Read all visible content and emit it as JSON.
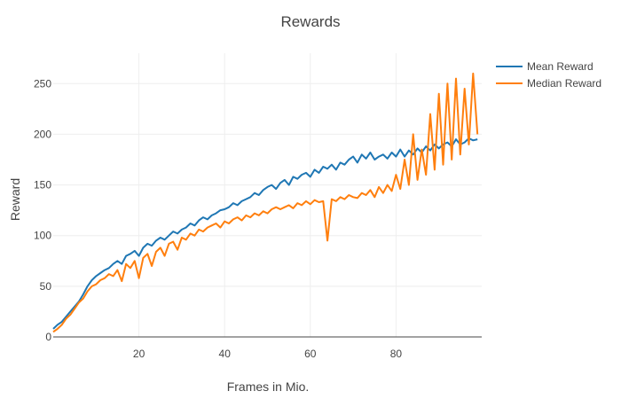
{
  "chart_data": {
    "type": "line",
    "title": "Rewards",
    "xlabel": "Frames in Mio.",
    "ylabel": "Reward",
    "xlim": [
      0,
      100
    ],
    "ylim": [
      0,
      280
    ],
    "xticks": [
      20,
      40,
      60,
      80
    ],
    "yticks": [
      0,
      50,
      100,
      150,
      200,
      250
    ],
    "grid": true,
    "legend_position": "top-right",
    "series": [
      {
        "name": "Mean Reward",
        "color": "#1f77b4",
        "x": [
          0,
          1,
          2,
          3,
          4,
          5,
          6,
          7,
          8,
          9,
          10,
          11,
          12,
          13,
          14,
          15,
          16,
          17,
          18,
          19,
          20,
          21,
          22,
          23,
          24,
          25,
          26,
          27,
          28,
          29,
          30,
          31,
          32,
          33,
          34,
          35,
          36,
          37,
          38,
          39,
          40,
          41,
          42,
          43,
          44,
          45,
          46,
          47,
          48,
          49,
          50,
          51,
          52,
          53,
          54,
          55,
          56,
          57,
          58,
          59,
          60,
          61,
          62,
          63,
          64,
          65,
          66,
          67,
          68,
          69,
          70,
          71,
          72,
          73,
          74,
          75,
          76,
          77,
          78,
          79,
          80,
          81,
          82,
          83,
          84,
          85,
          86,
          87,
          88,
          89,
          90,
          91,
          92,
          93,
          94,
          95,
          96,
          97,
          98,
          99
        ],
        "y": [
          8,
          12,
          15,
          20,
          25,
          30,
          35,
          42,
          50,
          56,
          60,
          63,
          66,
          68,
          72,
          75,
          72,
          80,
          82,
          85,
          80,
          88,
          92,
          90,
          95,
          98,
          96,
          100,
          104,
          102,
          106,
          108,
          112,
          110,
          115,
          118,
          116,
          120,
          122,
          125,
          126,
          128,
          132,
          130,
          134,
          136,
          138,
          142,
          140,
          145,
          148,
          150,
          146,
          152,
          155,
          150,
          158,
          156,
          160,
          162,
          158,
          165,
          162,
          168,
          166,
          170,
          165,
          172,
          170,
          175,
          178,
          172,
          180,
          176,
          182,
          175,
          178,
          180,
          176,
          182,
          178,
          185,
          178,
          184,
          180,
          186,
          182,
          188,
          184,
          190,
          186,
          190,
          192,
          188,
          195,
          190,
          192,
          196,
          194,
          195
        ]
      },
      {
        "name": "Median Reward",
        "color": "#ff7f0e",
        "x": [
          0,
          1,
          2,
          3,
          4,
          5,
          6,
          7,
          8,
          9,
          10,
          11,
          12,
          13,
          14,
          15,
          16,
          17,
          18,
          19,
          20,
          21,
          22,
          23,
          24,
          25,
          26,
          27,
          28,
          29,
          30,
          31,
          32,
          33,
          34,
          35,
          36,
          37,
          38,
          39,
          40,
          41,
          42,
          43,
          44,
          45,
          46,
          47,
          48,
          49,
          50,
          51,
          52,
          53,
          54,
          55,
          56,
          57,
          58,
          59,
          60,
          61,
          62,
          63,
          64,
          65,
          66,
          67,
          68,
          69,
          70,
          71,
          72,
          73,
          74,
          75,
          76,
          77,
          78,
          79,
          80,
          81,
          82,
          83,
          84,
          85,
          86,
          87,
          88,
          89,
          90,
          91,
          92,
          93,
          94,
          95,
          96,
          97,
          98,
          99
        ],
        "y": [
          5,
          8,
          12,
          18,
          22,
          28,
          34,
          38,
          45,
          50,
          52,
          56,
          58,
          62,
          60,
          66,
          55,
          72,
          68,
          75,
          58,
          78,
          82,
          70,
          84,
          88,
          80,
          92,
          94,
          86,
          98,
          96,
          102,
          100,
          106,
          104,
          108,
          110,
          112,
          108,
          114,
          112,
          116,
          118,
          115,
          120,
          118,
          122,
          120,
          124,
          122,
          126,
          128,
          126,
          128,
          130,
          127,
          132,
          130,
          134,
          131,
          135,
          133,
          134,
          95,
          136,
          134,
          138,
          136,
          140,
          138,
          137,
          142,
          140,
          145,
          138,
          148,
          142,
          150,
          144,
          160,
          146,
          175,
          150,
          200,
          155,
          185,
          160,
          220,
          165,
          240,
          170,
          250,
          175,
          255,
          180,
          245,
          190,
          260,
          200
        ]
      }
    ]
  }
}
